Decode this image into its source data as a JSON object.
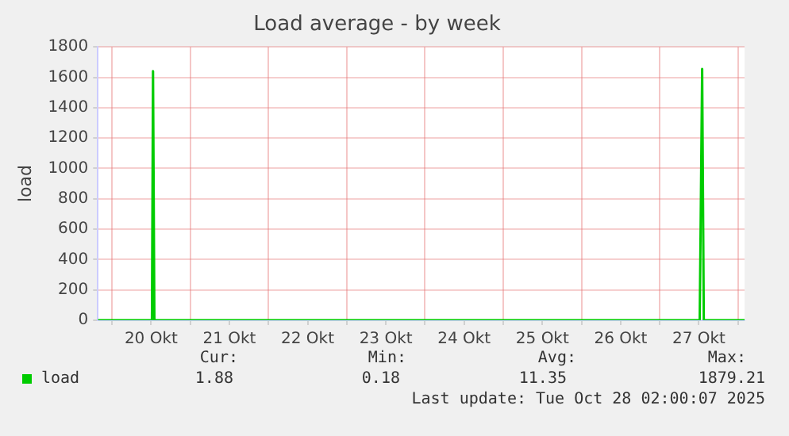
{
  "chart_data": {
    "type": "line",
    "title": "Load average - by week",
    "ylabel": "load",
    "x": [
      "2025-10-19T19:40",
      "2025-10-20T11:30",
      "2025-10-20T12:15",
      "2025-10-20T12:35",
      "2025-10-20T13:00",
      "2025-10-20T14:00",
      "2025-10-27T12:15",
      "2025-10-27T13:00",
      "2025-10-27T13:30",
      "2025-10-27T14:30",
      "2025-10-28T02:00"
    ],
    "series": [
      {
        "name": "load",
        "color": "#00cc00",
        "values": [
          0,
          0,
          0,
          1640,
          0,
          0,
          0,
          1655,
          0,
          0,
          0
        ]
      }
    ],
    "xlim": [
      "2025-10-19T19:40",
      "2025-10-28T02:00"
    ],
    "xticks": [
      {
        "value": "2025-10-20T00:00",
        "label": null
      },
      {
        "value": "2025-10-20T12:00",
        "label": "20 Okt"
      },
      {
        "value": "2025-10-21T00:00",
        "label": null
      },
      {
        "value": "2025-10-21T12:00",
        "label": "21 Okt"
      },
      {
        "value": "2025-10-22T00:00",
        "label": null
      },
      {
        "value": "2025-10-22T12:00",
        "label": "22 Okt"
      },
      {
        "value": "2025-10-23T00:00",
        "label": null
      },
      {
        "value": "2025-10-23T12:00",
        "label": "23 Okt"
      },
      {
        "value": "2025-10-24T00:00",
        "label": null
      },
      {
        "value": "2025-10-24T12:00",
        "label": "24 Okt"
      },
      {
        "value": "2025-10-25T00:00",
        "label": null
      },
      {
        "value": "2025-10-25T12:00",
        "label": "25 Okt"
      },
      {
        "value": "2025-10-26T00:00",
        "label": null
      },
      {
        "value": "2025-10-26T12:00",
        "label": "26 Okt"
      },
      {
        "value": "2025-10-27T00:00",
        "label": null
      },
      {
        "value": "2025-10-27T12:00",
        "label": "27 Okt"
      },
      {
        "value": "2025-10-28T00:00",
        "label": null
      }
    ],
    "ylim": [
      0,
      1800
    ],
    "yticks": [
      0,
      200,
      400,
      600,
      800,
      1000,
      1200,
      1400,
      1600,
      1800
    ],
    "grid": true,
    "legend": "bottom left",
    "marker": "none",
    "line_style": "solid",
    "annotations": [
      "Cur:",
      "Min:",
      "Avg:",
      "Max:",
      "1.88",
      "0.18",
      "11.35",
      "1879.21",
      "Last update: Tue Oct 28 02:00:07 2025"
    ]
  }
}
